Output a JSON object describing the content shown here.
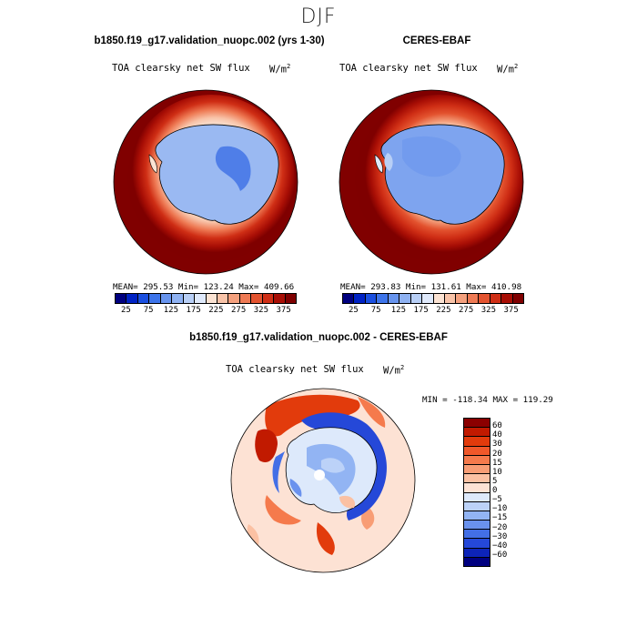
{
  "season": "DJF",
  "panels": [
    {
      "title": "b1850.f19_g17.validation_nuopc.002 (yrs 1-30)",
      "variable": "TOA clearsky net SW flux",
      "units": "W/m",
      "units_sup": "2",
      "stats": "MEAN= 295.53   Min= 123.24   Max= 409.66",
      "mean": 295.53,
      "min": 123.24,
      "max": 409.66
    },
    {
      "title": "CERES-EBAF",
      "variable": "TOA clearsky net SW flux",
      "units": "W/m",
      "units_sup": "2",
      "stats": "MEAN= 293.83   Min= 131.61   Max= 410.98",
      "mean": 293.83,
      "min": 131.61,
      "max": 410.98
    }
  ],
  "abs_colorbar": {
    "colors": [
      "#00007f",
      "#0022c4",
      "#1a4fe0",
      "#3d74ea",
      "#6794ee",
      "#8fb2f2",
      "#b8cff6",
      "#dfe9fb",
      "#fbe3d3",
      "#f8c3a8",
      "#f4a07d",
      "#ee7a54",
      "#e3532f",
      "#cf2e15",
      "#a80e05",
      "#7f0000"
    ],
    "labels": [
      "25",
      "75",
      "125",
      "175",
      "225",
      "275",
      "325",
      "375"
    ]
  },
  "diff_panel": {
    "title": "b1850.f19_g17.validation_nuopc.002 - CERES-EBAF",
    "variable": "TOA clearsky net SW flux",
    "units": "W/m",
    "units_sup": "2",
    "stats": "MIN = -118.34  MAX = 119.29",
    "min": -118.34,
    "max": 119.29
  },
  "diff_colorbar": {
    "colors": [
      "#8b0000",
      "#c11a00",
      "#e23b0c",
      "#f0582a",
      "#f57a4c",
      "#f89d75",
      "#fbc1a3",
      "#fde2d4",
      "#dde9fb",
      "#bcd2f8",
      "#92b4f3",
      "#6a92ee",
      "#436fe6",
      "#2548d8",
      "#0d24b8",
      "#000080"
    ],
    "labels": [
      "60",
      "40",
      "30",
      "20",
      "15",
      "10",
      "5",
      "0",
      "−5",
      "−10",
      "−15",
      "−20",
      "−30",
      "−40",
      "−60"
    ]
  },
  "chart_data": [
    {
      "type": "heatmap",
      "title": "b1850.f19_g17.validation_nuopc.002 (yrs 1-30)",
      "projection": "south-polar-stereographic",
      "variable": "TOA clearsky net SW flux",
      "units": "W/m2",
      "stats": {
        "mean": 295.53,
        "min": 123.24,
        "max": 409.66
      },
      "colorbar_levels": [
        25,
        50,
        75,
        100,
        125,
        150,
        175,
        200,
        225,
        250,
        275,
        300,
        325,
        350,
        375
      ],
      "colorbar_labels": [
        "25",
        "75",
        "125",
        "175",
        "225",
        "275",
        "325",
        "375"
      ]
    },
    {
      "type": "heatmap",
      "title": "CERES-EBAF",
      "projection": "south-polar-stereographic",
      "variable": "TOA clearsky net SW flux",
      "units": "W/m2",
      "stats": {
        "mean": 293.83,
        "min": 131.61,
        "max": 410.98
      },
      "colorbar_levels": [
        25,
        50,
        75,
        100,
        125,
        150,
        175,
        200,
        225,
        250,
        275,
        300,
        325,
        350,
        375
      ],
      "colorbar_labels": [
        "25",
        "75",
        "125",
        "175",
        "225",
        "275",
        "325",
        "375"
      ]
    },
    {
      "type": "heatmap",
      "title": "b1850.f19_g17.validation_nuopc.002 - CERES-EBAF",
      "projection": "south-polar-stereographic",
      "variable": "TOA clearsky net SW flux",
      "units": "W/m2",
      "stats": {
        "min": -118.34,
        "max": 119.29
      },
      "colorbar_levels": [
        60,
        40,
        30,
        20,
        15,
        10,
        5,
        0,
        -5,
        -10,
        -15,
        -20,
        -30,
        -40,
        -60
      ]
    }
  ]
}
